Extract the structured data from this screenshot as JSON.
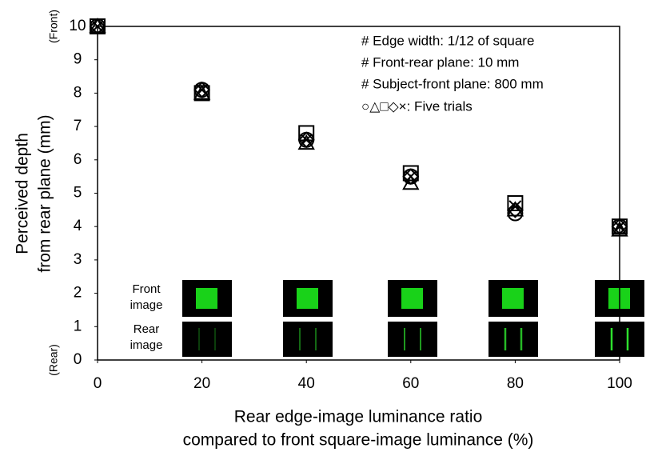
{
  "chart_data": {
    "type": "scatter",
    "x": [
      0,
      20,
      40,
      60,
      80,
      100
    ],
    "series": [
      {
        "marker": "circle",
        "color": "#000000",
        "values": [
          10,
          8.1,
          6.6,
          5.5,
          4.4,
          4.0
        ]
      },
      {
        "marker": "triangle",
        "color": "#000000",
        "values": [
          10,
          8.0,
          6.5,
          5.3,
          4.5,
          3.9
        ]
      },
      {
        "marker": "square",
        "color": "#000000",
        "values": [
          10,
          8.0,
          6.8,
          5.6,
          4.7,
          4.0
        ]
      },
      {
        "marker": "diamond",
        "color": "#000000",
        "values": [
          10,
          8.1,
          6.6,
          5.5,
          4.5,
          4.0
        ]
      },
      {
        "marker": "x",
        "color": "#000000",
        "values": [
          10,
          8.1,
          6.6,
          5.5,
          4.6,
          4.0
        ]
      }
    ],
    "xlim": [
      0,
      100
    ],
    "xticks": [
      0,
      20,
      40,
      60,
      80,
      100
    ],
    "ylim": [
      0,
      10
    ],
    "yticks": [
      0,
      1,
      2,
      3,
      4,
      5,
      6,
      7,
      8,
      9,
      10
    ],
    "xlabel": [
      "Rear edge-image luminance ratio",
      "compared to front square-image luminance  (%)"
    ],
    "ylabel": [
      "Perceived depth",
      "from rear plane (mm)"
    ],
    "top_label": "(Front)",
    "bottom_label": "(Rear)",
    "annotations": [
      "# Edge width: 1/12 of square",
      "# Front-rear plane: 10 mm",
      "# Subject-front plane: 800 mm",
      "○△□◇×:  Five trials"
    ],
    "inset_labels": {
      "front": [
        "Front",
        "image"
      ],
      "rear": [
        "Rear",
        "image"
      ]
    }
  }
}
